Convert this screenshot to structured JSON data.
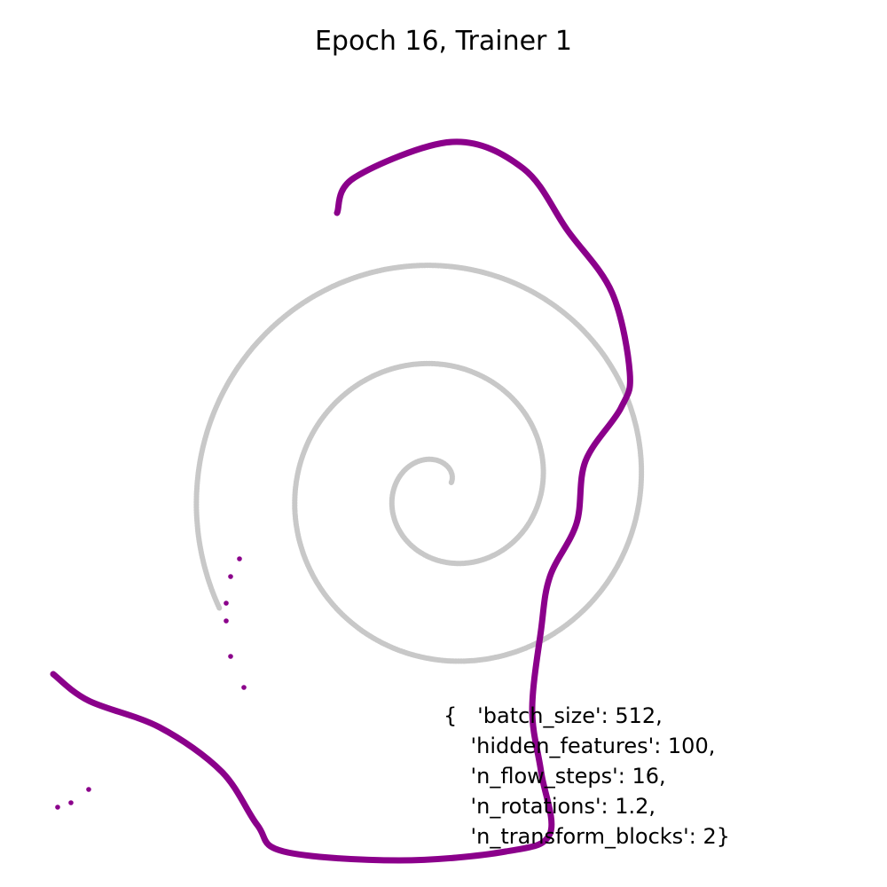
{
  "chart_data": {
    "type": "scatter",
    "title": "Epoch 16, Trainer 1",
    "xlabel": "",
    "ylabel": "",
    "axes_visible": false,
    "grid": false,
    "xlim": [
      -4.5,
      4.5
    ],
    "ylim": [
      -4.5,
      4.5
    ],
    "colors": {
      "target": "#9a9a9a",
      "model": "#8b008b"
    },
    "series": [
      {
        "role": "target",
        "spiral": {
          "center": [
            0.0,
            0.0
          ],
          "theta_start": 0.6,
          "theta_end": 16.2,
          "growth": 0.177,
          "rotation": 0.0
        }
      },
      {
        "role": "model",
        "points": [
          [
            -1.2,
            3.1
          ],
          [
            -1.0,
            3.5
          ],
          [
            0.1,
            3.9
          ],
          [
            0.9,
            3.6
          ],
          [
            1.4,
            2.9
          ],
          [
            1.9,
            2.2
          ],
          [
            2.1,
            1.3
          ],
          [
            2.0,
            0.9
          ],
          [
            1.6,
            0.3
          ],
          [
            1.5,
            -0.4
          ],
          [
            1.2,
            -1.0
          ],
          [
            1.1,
            -1.6
          ],
          [
            1.0,
            -2.5
          ],
          [
            1.1,
            -3.2
          ],
          [
            1.2,
            -3.9
          ],
          [
            0.7,
            -4.1
          ],
          [
            -0.5,
            -4.2
          ],
          [
            -1.8,
            -4.1
          ],
          [
            -2.1,
            -3.8
          ],
          [
            -2.5,
            -3.2
          ],
          [
            -3.2,
            -2.7
          ],
          [
            -4.0,
            -2.4
          ],
          [
            -4.4,
            -2.1
          ]
        ],
        "stray_points": [
          [
            -2.3,
            -0.8
          ],
          [
            -2.4,
            -1.0
          ],
          [
            -2.45,
            -1.3
          ],
          [
            -2.45,
            -1.5
          ],
          [
            -2.4,
            -1.9
          ],
          [
            -2.25,
            -2.25
          ],
          [
            -4.0,
            -3.4
          ],
          [
            -4.2,
            -3.55
          ],
          [
            -4.35,
            -3.6
          ]
        ]
      }
    ],
    "annotation": {
      "lines": [
        "{   'batch_size': 512,",
        "    'hidden_features': 100,",
        "    'n_flow_steps': 16,",
        "    'n_rotations': 1.2,",
        "    'n_transform_blocks': 2}"
      ]
    }
  }
}
